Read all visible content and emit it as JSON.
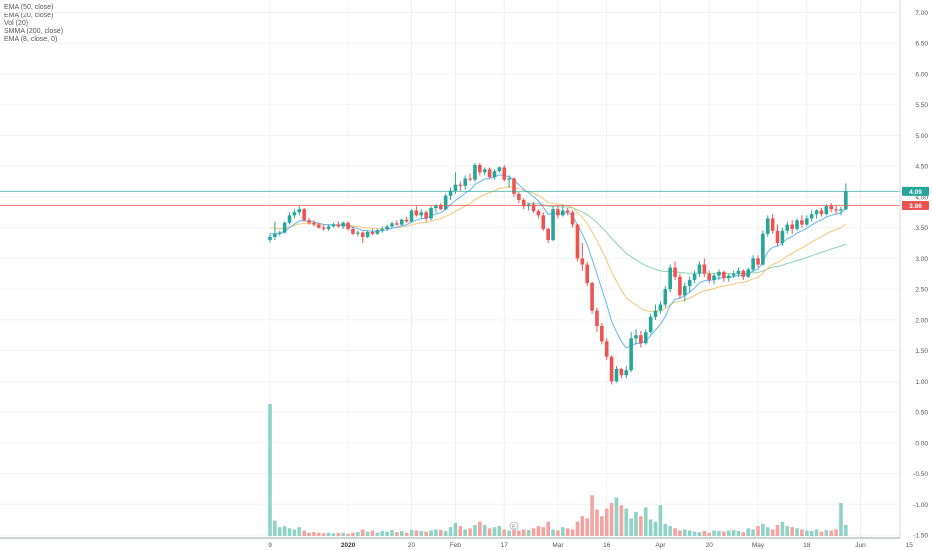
{
  "legend": {
    "items": [
      "EMA (50, close)",
      "EMA (20, close)",
      "Vol (20)",
      "SMMA (200, close)",
      "EMA (8, close, 0)"
    ]
  },
  "chart_data": {
    "type": "candlestick",
    "yaxis": {
      "ticks": [
        "7.00",
        "6.50",
        "6.00",
        "5.50",
        "5.00",
        "4.50",
        "4.00",
        "3.50",
        "3.00",
        "2.50",
        "2.00",
        "1.50",
        "1.00",
        "0.50",
        "0.00",
        "-0.50",
        "-1.00",
        "-1.50"
      ],
      "tick_values": [
        7.0,
        6.5,
        6.0,
        5.5,
        5.0,
        4.5,
        4.0,
        3.5,
        3.0,
        2.5,
        2.0,
        1.5,
        1.0,
        0.5,
        0.0,
        -0.5,
        -1.0,
        -1.5
      ],
      "range": [
        -1.5,
        7.25
      ]
    },
    "xaxis": {
      "labels": [
        {
          "text": "9",
          "i": 0
        },
        {
          "text": "2020",
          "i": 16
        },
        {
          "text": "20",
          "i": 29
        },
        {
          "text": "Feb",
          "i": 38
        },
        {
          "text": "17",
          "i": 48
        },
        {
          "text": "Mar",
          "i": 59
        },
        {
          "text": "16",
          "i": 69
        },
        {
          "text": "Apr",
          "i": 80
        },
        {
          "text": "20",
          "i": 90
        },
        {
          "text": "May",
          "i": 100
        },
        {
          "text": "18",
          "i": 110
        },
        {
          "text": "Jun",
          "i": 121
        },
        {
          "text": "15",
          "i": 131
        }
      ],
      "total_slots": 132
    },
    "price_markers": [
      {
        "label": "4.09",
        "value": 4.09,
        "color": "#26a69a"
      },
      {
        "label": "3.86",
        "value": 3.86,
        "color": "#ef5350"
      }
    ],
    "candles": [
      [
        3.3,
        3.4,
        3.26,
        3.35
      ],
      [
        3.35,
        3.6,
        3.3,
        3.4
      ],
      [
        3.4,
        3.45,
        3.36,
        3.42
      ],
      [
        3.42,
        3.6,
        3.4,
        3.58
      ],
      [
        3.58,
        3.75,
        3.55,
        3.7
      ],
      [
        3.7,
        3.8,
        3.65,
        3.75
      ],
      [
        3.75,
        3.85,
        3.7,
        3.8
      ],
      [
        3.8,
        3.82,
        3.6,
        3.62
      ],
      [
        3.62,
        3.66,
        3.55,
        3.58
      ],
      [
        3.58,
        3.62,
        3.52,
        3.55
      ],
      [
        3.55,
        3.58,
        3.48,
        3.5
      ],
      [
        3.5,
        3.55,
        3.45,
        3.48
      ],
      [
        3.48,
        3.55,
        3.45,
        3.52
      ],
      [
        3.52,
        3.58,
        3.5,
        3.55
      ],
      [
        3.55,
        3.6,
        3.5,
        3.52
      ],
      [
        3.52,
        3.6,
        3.48,
        3.58
      ],
      [
        3.58,
        3.6,
        3.45,
        3.48
      ],
      [
        3.48,
        3.52,
        3.38,
        3.4
      ],
      [
        3.4,
        3.45,
        3.36,
        3.42
      ],
      [
        3.42,
        3.44,
        3.25,
        3.35
      ],
      [
        3.35,
        3.45,
        3.33,
        3.43
      ],
      [
        3.43,
        3.48,
        3.38,
        3.4
      ],
      [
        3.4,
        3.48,
        3.38,
        3.46
      ],
      [
        3.46,
        3.52,
        3.42,
        3.48
      ],
      [
        3.48,
        3.55,
        3.45,
        3.52
      ],
      [
        3.52,
        3.6,
        3.5,
        3.57
      ],
      [
        3.57,
        3.62,
        3.52,
        3.55
      ],
      [
        3.55,
        3.65,
        3.53,
        3.63
      ],
      [
        3.63,
        3.68,
        3.58,
        3.6
      ],
      [
        3.6,
        3.8,
        3.58,
        3.78
      ],
      [
        3.78,
        3.85,
        3.68,
        3.7
      ],
      [
        3.7,
        3.8,
        3.66,
        3.75
      ],
      [
        3.75,
        3.78,
        3.6,
        3.65
      ],
      [
        3.65,
        3.85,
        3.62,
        3.82
      ],
      [
        3.82,
        3.88,
        3.75,
        3.86
      ],
      [
        3.86,
        3.9,
        3.78,
        3.8
      ],
      [
        3.8,
        4.05,
        3.78,
        4.02
      ],
      [
        4.02,
        4.15,
        3.95,
        4.1
      ],
      [
        4.1,
        4.4,
        4.05,
        4.2
      ],
      [
        4.2,
        4.25,
        4.1,
        4.18
      ],
      [
        4.18,
        4.35,
        4.12,
        4.3
      ],
      [
        4.3,
        4.38,
        4.25,
        4.28
      ],
      [
        4.28,
        4.55,
        4.25,
        4.52
      ],
      [
        4.52,
        4.55,
        4.35,
        4.4
      ],
      [
        4.4,
        4.48,
        4.35,
        4.45
      ],
      [
        4.45,
        4.48,
        4.3,
        4.32
      ],
      [
        4.32,
        4.45,
        4.28,
        4.42
      ],
      [
        4.42,
        4.5,
        4.4,
        4.48
      ],
      [
        4.48,
        4.52,
        4.25,
        4.28
      ],
      [
        4.28,
        4.35,
        4.15,
        4.3
      ],
      [
        4.3,
        4.32,
        4.0,
        4.05
      ],
      [
        4.05,
        4.08,
        3.9,
        3.95
      ],
      [
        3.95,
        3.98,
        3.8,
        3.85
      ],
      [
        3.85,
        3.9,
        3.78,
        3.88
      ],
      [
        3.88,
        3.92,
        3.74,
        3.77
      ],
      [
        3.77,
        3.8,
        3.65,
        3.7
      ],
      [
        3.7,
        3.75,
        3.45,
        3.48
      ],
      [
        3.48,
        3.5,
        3.25,
        3.3
      ],
      [
        3.3,
        3.85,
        3.28,
        3.8
      ],
      [
        3.8,
        3.85,
        3.65,
        3.7
      ],
      [
        3.7,
        3.88,
        3.68,
        3.78
      ],
      [
        3.78,
        3.82,
        3.7,
        3.75
      ],
      [
        3.75,
        3.78,
        3.5,
        3.55
      ],
      [
        3.55,
        3.56,
        2.95,
        3.0
      ],
      [
        3.0,
        3.25,
        2.8,
        2.9
      ],
      [
        2.9,
        2.95,
        2.55,
        2.6
      ],
      [
        2.6,
        2.62,
        2.1,
        2.15
      ],
      [
        2.15,
        2.2,
        1.8,
        1.9
      ],
      [
        1.9,
        1.95,
        1.6,
        1.65
      ],
      [
        1.65,
        1.7,
        1.35,
        1.4
      ],
      [
        1.4,
        1.42,
        0.95,
        1.0
      ],
      [
        1.0,
        1.25,
        0.98,
        1.2
      ],
      [
        1.2,
        1.22,
        1.05,
        1.1
      ],
      [
        1.1,
        1.25,
        1.05,
        1.18
      ],
      [
        1.18,
        1.8,
        1.15,
        1.7
      ],
      [
        1.7,
        1.85,
        1.6,
        1.75
      ],
      [
        1.75,
        1.82,
        1.55,
        1.62
      ],
      [
        1.62,
        1.85,
        1.6,
        1.8
      ],
      [
        1.8,
        2.1,
        1.78,
        2.05
      ],
      [
        2.05,
        2.25,
        2.0,
        2.15
      ],
      [
        2.15,
        2.3,
        2.1,
        2.25
      ],
      [
        2.25,
        2.55,
        2.2,
        2.5
      ],
      [
        2.5,
        2.9,
        2.45,
        2.85
      ],
      [
        2.85,
        2.95,
        2.65,
        2.7
      ],
      [
        2.7,
        2.75,
        2.35,
        2.4
      ],
      [
        2.4,
        2.6,
        2.3,
        2.55
      ],
      [
        2.55,
        2.7,
        2.45,
        2.65
      ],
      [
        2.65,
        2.8,
        2.6,
        2.75
      ],
      [
        2.75,
        2.95,
        2.7,
        2.9
      ],
      [
        2.9,
        3.0,
        2.7,
        2.75
      ],
      [
        2.75,
        2.8,
        2.6,
        2.65
      ],
      [
        2.65,
        2.75,
        2.58,
        2.72
      ],
      [
        2.72,
        2.82,
        2.65,
        2.78
      ],
      [
        2.78,
        2.8,
        2.62,
        2.68
      ],
      [
        2.68,
        2.75,
        2.62,
        2.72
      ],
      [
        2.72,
        2.8,
        2.68,
        2.75
      ],
      [
        2.75,
        2.85,
        2.7,
        2.8
      ],
      [
        2.8,
        2.82,
        2.65,
        2.7
      ],
      [
        2.7,
        2.85,
        2.68,
        2.82
      ],
      [
        2.82,
        3.05,
        2.78,
        3.0
      ],
      [
        3.0,
        3.05,
        2.85,
        2.9
      ],
      [
        2.9,
        3.45,
        2.88,
        3.4
      ],
      [
        3.4,
        3.7,
        3.35,
        3.65
      ],
      [
        3.65,
        3.72,
        3.4,
        3.45
      ],
      [
        3.45,
        3.55,
        3.2,
        3.25
      ],
      [
        3.25,
        3.5,
        3.2,
        3.45
      ],
      [
        3.45,
        3.6,
        3.4,
        3.55
      ],
      [
        3.55,
        3.62,
        3.4,
        3.48
      ],
      [
        3.48,
        3.65,
        3.45,
        3.62
      ],
      [
        3.62,
        3.7,
        3.5,
        3.55
      ],
      [
        3.55,
        3.7,
        3.52,
        3.65
      ],
      [
        3.65,
        3.78,
        3.6,
        3.72
      ],
      [
        3.72,
        3.8,
        3.65,
        3.78
      ],
      [
        3.78,
        3.82,
        3.68,
        3.72
      ],
      [
        3.72,
        3.88,
        3.7,
        3.85
      ],
      [
        3.85,
        3.9,
        3.75,
        3.8
      ],
      [
        3.8,
        3.86,
        3.72,
        3.78
      ],
      [
        3.78,
        3.84,
        3.7,
        3.8
      ],
      [
        3.8,
        4.22,
        3.78,
        4.09
      ]
    ],
    "volume": [
      12.0,
      1.4,
      0.8,
      0.9,
      0.7,
      0.6,
      0.8,
      0.5,
      0.3,
      0.35,
      0.3,
      0.25,
      0.3,
      0.25,
      0.28,
      0.3,
      0.2,
      0.3,
      0.35,
      0.6,
      0.4,
      0.5,
      0.3,
      0.45,
      0.4,
      0.55,
      0.35,
      0.45,
      0.3,
      0.55,
      0.5,
      0.45,
      0.4,
      0.5,
      0.6,
      0.55,
      0.45,
      0.8,
      1.2,
      0.9,
      0.6,
      0.7,
      1.0,
      1.3,
      1.0,
      0.7,
      0.8,
      0.9,
      0.6,
      0.5,
      0.6,
      0.5,
      0.6,
      0.55,
      0.7,
      0.9,
      0.8,
      1.3,
      0.6,
      0.5,
      0.8,
      0.7,
      0.6,
      1.3,
      1.8,
      1.6,
      3.7,
      2.4,
      1.8,
      2.5,
      3.0,
      3.5,
      2.8,
      2.5,
      1.6,
      2.2,
      1.8,
      2.6,
      1.5,
      1.3,
      2.8,
      1.1,
      0.9,
      0.7,
      0.5,
      0.6,
      0.5,
      0.4,
      0.35,
      0.45,
      0.3,
      0.5,
      0.45,
      0.4,
      0.5,
      0.55,
      0.45,
      0.35,
      0.7,
      0.6,
      0.9,
      1.1,
      0.8,
      0.6,
      1.0,
      1.3,
      0.9,
      0.8,
      0.7,
      0.6,
      0.5,
      0.45,
      0.6,
      0.4,
      0.55,
      0.5,
      0.6,
      3.0,
      1.0
    ],
    "ema8_start": 3.4,
    "ema20_start": 3.5,
    "ema50_start_index": 52,
    "ema50_start": 3.9,
    "marker_label": "E"
  }
}
